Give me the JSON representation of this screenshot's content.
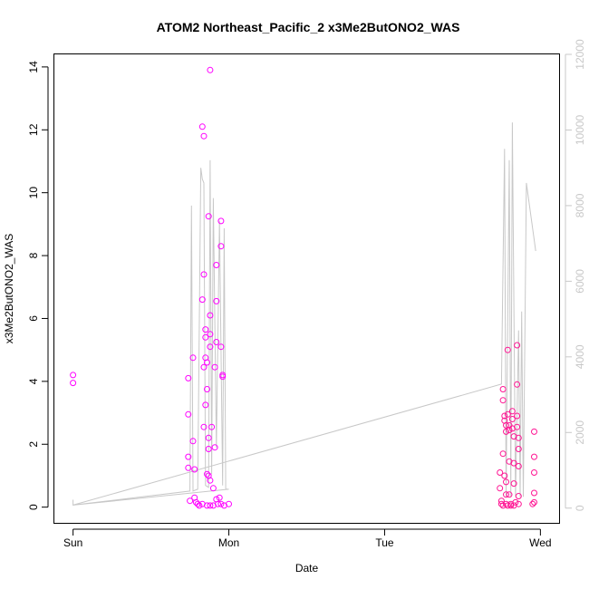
{
  "chart_data": {
    "type": "scatter",
    "title": "ATOM2 Northeast_Pacific_2 x3Me2ButONO2_WAS",
    "xlabel": "Date",
    "ylabel": "x3Me2ButONO2_WAS",
    "x_tick_labels": [
      "Sun",
      "Mon",
      "Tue",
      "Wed"
    ],
    "x_tick_values": [
      0,
      1,
      2,
      3
    ],
    "xlim": [
      -0.12,
      3.12
    ],
    "ylim": [
      -0.5,
      14.4
    ],
    "y_ticks": [
      0,
      2,
      4,
      6,
      8,
      10,
      12,
      14
    ],
    "y2lim": [
      -390,
      12000
    ],
    "y2_ticks": [
      0,
      2000,
      4000,
      6000,
      8000,
      10000,
      12000
    ],
    "colors": {
      "points_a": "#ff00ff",
      "points_b": "#ff1493",
      "line": "#c8c8c8",
      "right_axis": "#c8c8c8",
      "axis": "#000000"
    },
    "series": [
      {
        "type": "line",
        "axis": "right",
        "values": [
          [
            0.0,
            220
          ],
          [
            0.0,
            80
          ],
          [
            0.75,
            450
          ],
          [
            0.76,
            8000
          ],
          [
            0.77,
            450
          ],
          [
            0.8,
            500
          ],
          [
            0.82,
            9000
          ],
          [
            0.83,
            8700
          ],
          [
            0.84,
            8600
          ],
          [
            0.85,
            600
          ],
          [
            0.87,
            550
          ],
          [
            0.88,
            9200
          ],
          [
            0.89,
            900
          ],
          [
            0.9,
            8200
          ],
          [
            0.92,
            1600
          ],
          [
            0.94,
            7600
          ],
          [
            0.96,
            600
          ],
          [
            0.97,
            7400
          ],
          [
            0.98,
            500
          ],
          [
            1.0,
            500
          ],
          [
            0.0,
            80
          ],
          [
            2.75,
            3280
          ],
          [
            2.77,
            9500
          ],
          [
            2.78,
            300
          ],
          [
            2.8,
            9200
          ],
          [
            2.81,
            300
          ],
          [
            2.82,
            10200
          ],
          [
            2.84,
            300
          ],
          [
            2.86,
            4700
          ],
          [
            2.87,
            300
          ],
          [
            2.88,
            5200
          ],
          [
            2.89,
            300
          ],
          [
            2.91,
            8600
          ],
          [
            2.97,
            6800
          ]
        ]
      },
      {
        "type": "scatter",
        "axis": "left",
        "color": "#ff00ff",
        "values": [
          [
            0.0,
            4.2
          ],
          [
            0.0,
            3.95
          ],
          [
            0.74,
            4.1
          ],
          [
            0.74,
            2.95
          ],
          [
            0.74,
            1.6
          ],
          [
            0.74,
            1.25
          ],
          [
            0.75,
            0.2
          ],
          [
            0.77,
            4.75
          ],
          [
            0.77,
            2.1
          ],
          [
            0.78,
            1.2
          ],
          [
            0.78,
            0.3
          ],
          [
            0.79,
            0.15
          ],
          [
            0.81,
            0.05
          ],
          [
            0.83,
            12.1
          ],
          [
            0.84,
            11.8
          ],
          [
            0.83,
            6.6
          ],
          [
            0.84,
            7.4
          ],
          [
            0.85,
            5.65
          ],
          [
            0.85,
            5.4
          ],
          [
            0.85,
            4.75
          ],
          [
            0.84,
            4.45
          ],
          [
            0.86,
            4.6
          ],
          [
            0.86,
            3.75
          ],
          [
            0.85,
            3.25
          ],
          [
            0.84,
            2.55
          ],
          [
            0.86,
            1.05
          ],
          [
            0.87,
            1.0
          ],
          [
            0.87,
            9.25
          ],
          [
            0.88,
            13.9
          ],
          [
            0.88,
            6.1
          ],
          [
            0.88,
            5.5
          ],
          [
            0.88,
            5.1
          ],
          [
            0.87,
            2.2
          ],
          [
            0.87,
            1.85
          ],
          [
            0.88,
            0.85
          ],
          [
            0.89,
            2.55
          ],
          [
            0.9,
            0.6
          ],
          [
            0.92,
            7.7
          ],
          [
            0.92,
            6.55
          ],
          [
            0.92,
            5.25
          ],
          [
            0.91,
            4.45
          ],
          [
            0.91,
            1.9
          ],
          [
            0.92,
            0.25
          ],
          [
            0.95,
            8.3
          ],
          [
            0.95,
            9.1
          ],
          [
            0.95,
            5.1
          ],
          [
            0.96,
            4.2
          ],
          [
            0.96,
            4.15
          ],
          [
            0.94,
            0.3
          ],
          [
            0.8,
            0.1
          ],
          [
            0.83,
            0.1
          ],
          [
            0.86,
            0.05
          ],
          [
            0.88,
            0.05
          ],
          [
            0.9,
            0.05
          ],
          [
            0.93,
            0.1
          ],
          [
            0.95,
            0.1
          ],
          [
            0.97,
            0.05
          ],
          [
            1.0,
            0.1
          ]
        ]
      },
      {
        "type": "scatter",
        "axis": "left",
        "color": "#ff1493",
        "values": [
          [
            2.74,
            1.1
          ],
          [
            2.74,
            0.6
          ],
          [
            2.75,
            0.2
          ],
          [
            2.75,
            0.1
          ],
          [
            2.76,
            0.05
          ],
          [
            2.76,
            3.75
          ],
          [
            2.76,
            3.4
          ],
          [
            2.77,
            2.9
          ],
          [
            2.77,
            2.75
          ],
          [
            2.78,
            2.6
          ],
          [
            2.78,
            2.4
          ],
          [
            2.76,
            1.7
          ],
          [
            2.77,
            1.0
          ],
          [
            2.78,
            0.8
          ],
          [
            2.78,
            0.4
          ],
          [
            2.78,
            0.1
          ],
          [
            2.79,
            5.0
          ],
          [
            2.79,
            2.95
          ],
          [
            2.8,
            2.6
          ],
          [
            2.8,
            2.45
          ],
          [
            2.8,
            1.45
          ],
          [
            2.8,
            0.4
          ],
          [
            2.81,
            0.1
          ],
          [
            2.82,
            3.05
          ],
          [
            2.82,
            2.8
          ],
          [
            2.82,
            2.5
          ],
          [
            2.83,
            2.25
          ],
          [
            2.83,
            1.4
          ],
          [
            2.83,
            0.75
          ],
          [
            2.84,
            0.15
          ],
          [
            2.85,
            5.15
          ],
          [
            2.85,
            3.9
          ],
          [
            2.85,
            2.9
          ],
          [
            2.85,
            2.55
          ],
          [
            2.86,
            2.2
          ],
          [
            2.86,
            1.85
          ],
          [
            2.86,
            1.3
          ],
          [
            2.86,
            0.35
          ],
          [
            2.86,
            0.1
          ],
          [
            2.83,
            0.05
          ],
          [
            2.81,
            0.05
          ],
          [
            2.79,
            0.05
          ],
          [
            2.96,
            2.4
          ],
          [
            2.96,
            1.6
          ],
          [
            2.96,
            1.1
          ],
          [
            2.96,
            0.45
          ],
          [
            2.96,
            0.15
          ],
          [
            2.95,
            0.1
          ]
        ]
      }
    ]
  }
}
